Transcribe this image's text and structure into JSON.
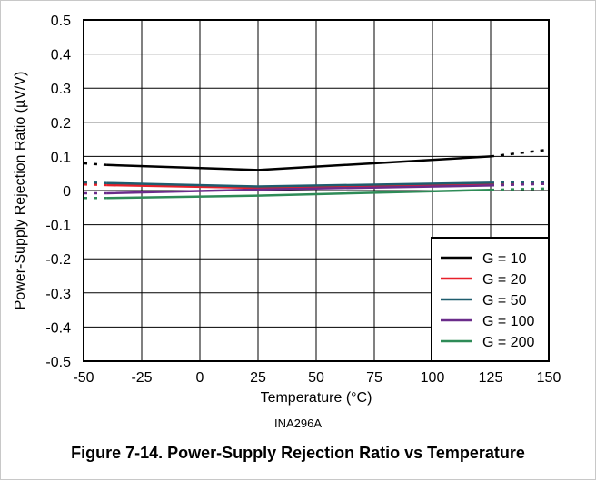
{
  "chart_data": {
    "type": "line",
    "title": "",
    "xlabel": "Temperature (°C)",
    "ylabel": "Power-Supply Rejection Ratio (µV/V)",
    "xlim": [
      -50,
      150
    ],
    "ylim": [
      -0.5,
      0.5
    ],
    "xticks": [
      -50,
      -25,
      0,
      25,
      50,
      75,
      100,
      125,
      150
    ],
    "yticks": [
      0.5,
      0.4,
      0.3,
      0.2,
      0.1,
      0,
      -0.1,
      -0.2,
      -0.3,
      -0.4,
      -0.5
    ],
    "xtick_labels": [
      "-50",
      "-25",
      "0",
      "25",
      "50",
      "75",
      "100",
      "125",
      "150"
    ],
    "ytick_labels": [
      "0.5",
      "0.4",
      "0.3",
      "0.2",
      "0.1",
      "0",
      "-0.1",
      "-0.2",
      "-0.3",
      "-0.4",
      "-0.5"
    ],
    "grid": true,
    "legend_position": "bottom-right",
    "solid_x_range": [
      -40,
      125
    ],
    "series": [
      {
        "name": "G = 10",
        "color": "#000000",
        "x": [
          -50,
          -40,
          25,
          125,
          150
        ],
        "y": [
          0.08,
          0.075,
          0.06,
          0.1,
          0.12
        ]
      },
      {
        "name": "G = 20",
        "color": "#e8202a",
        "x": [
          -50,
          -40,
          25,
          125,
          150
        ],
        "y": [
          0.018,
          0.016,
          0.008,
          0.017,
          0.02
        ]
      },
      {
        "name": "G = 50",
        "color": "#1f5c6e",
        "x": [
          -50,
          -40,
          25,
          125,
          150
        ],
        "y": [
          0.024,
          0.022,
          0.012,
          0.023,
          0.026
        ]
      },
      {
        "name": "G = 100",
        "color": "#6a2c8a",
        "x": [
          -50,
          -40,
          25,
          125,
          150
        ],
        "y": [
          -0.008,
          -0.008,
          0.003,
          0.015,
          0.02
        ]
      },
      {
        "name": "G = 200",
        "color": "#2e8b57",
        "x": [
          -50,
          -40,
          25,
          125,
          150
        ],
        "y": [
          -0.022,
          -0.022,
          -0.015,
          0.002,
          0.006
        ]
      }
    ]
  },
  "footnote": "INA296A",
  "caption": "Figure 7-14. Power-Supply Rejection Ratio vs Temperature"
}
